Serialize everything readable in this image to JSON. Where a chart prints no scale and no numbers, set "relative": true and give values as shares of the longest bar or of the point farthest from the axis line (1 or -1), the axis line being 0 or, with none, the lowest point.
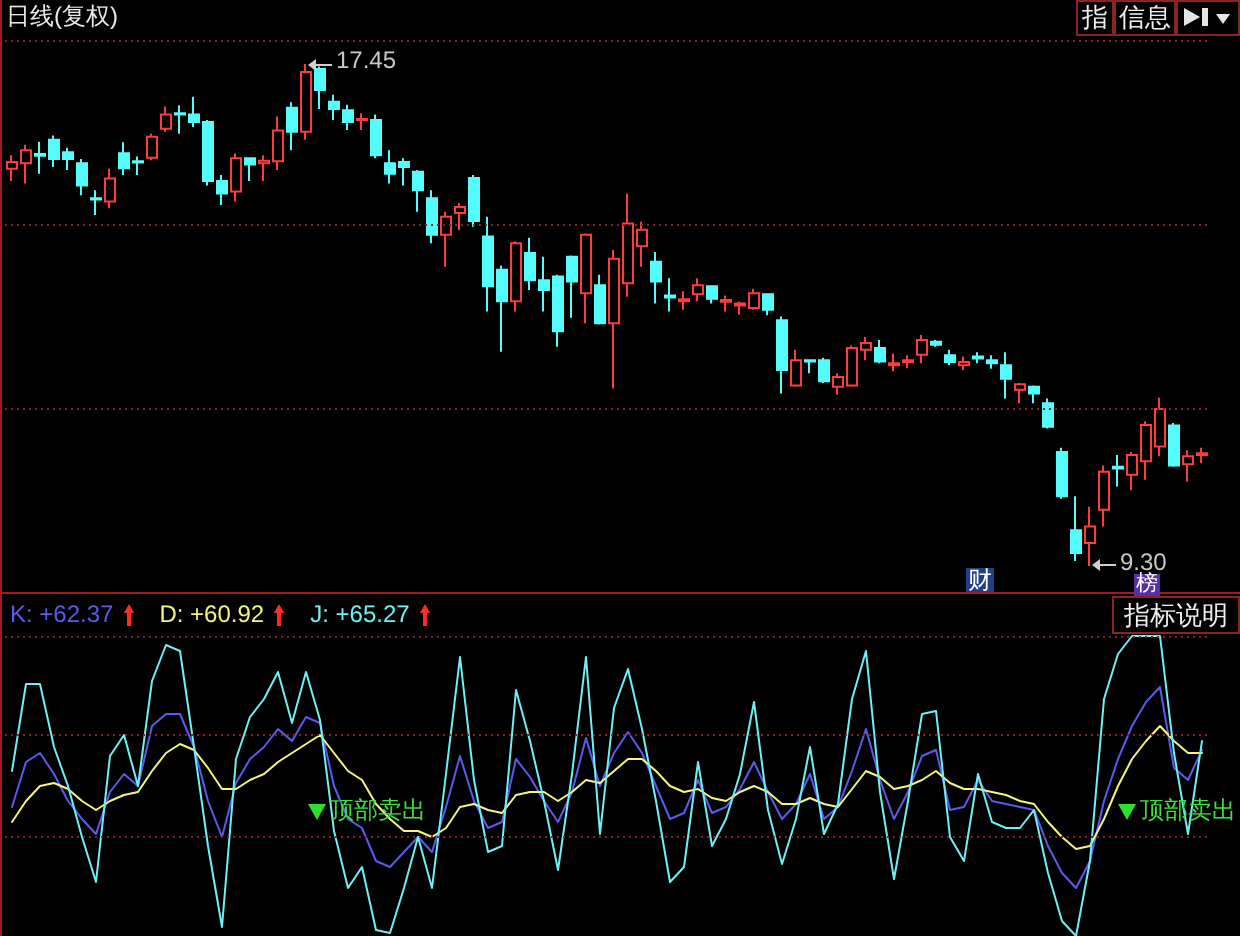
{
  "chart_data": [
    {
      "type": "candlestick",
      "title": "日线(复权)",
      "categories": [
        null,
        null,
        null,
        null,
        null,
        null,
        null,
        null,
        null,
        null,
        null,
        null,
        null,
        null,
        null,
        null,
        null,
        null,
        null,
        null,
        null,
        null,
        null,
        null,
        null,
        null,
        null,
        null,
        null,
        null,
        null,
        null,
        null,
        null,
        null,
        null,
        null,
        null,
        null,
        null,
        null,
        null,
        null,
        null,
        null,
        null,
        null,
        null,
        null,
        null,
        null,
        null,
        null,
        null,
        null,
        null,
        null,
        null,
        null,
        null,
        null,
        null,
        null,
        null,
        null,
        null,
        null,
        null,
        null,
        null,
        null,
        null,
        null,
        null,
        null,
        null,
        null,
        null,
        null,
        null,
        null,
        null,
        null,
        null,
        null,
        null
      ],
      "ohlc": [
        [
          15.75,
          15.97,
          15.55,
          15.86
        ],
        [
          15.84,
          16.14,
          15.51,
          16.05
        ],
        [
          15.99,
          16.19,
          15.67,
          15.96
        ],
        [
          16.22,
          16.29,
          15.78,
          15.91
        ],
        [
          16.02,
          16.09,
          15.73,
          15.91
        ],
        [
          15.84,
          15.91,
          15.32,
          15.48
        ],
        [
          15.27,
          15.4,
          15.0,
          15.25
        ],
        [
          15.22,
          15.75,
          15.11,
          15.59
        ],
        [
          16.0,
          16.18,
          15.65,
          15.76
        ],
        [
          15.87,
          15.95,
          15.65,
          15.85
        ],
        [
          15.93,
          16.32,
          15.89,
          16.27
        ],
        [
          16.4,
          16.76,
          16.35,
          16.63
        ],
        [
          16.65,
          16.78,
          16.32,
          16.63
        ],
        [
          16.63,
          16.92,
          16.43,
          16.51
        ],
        [
          16.51,
          16.54,
          15.48,
          15.55
        ],
        [
          15.55,
          15.65,
          15.16,
          15.35
        ],
        [
          15.38,
          16.0,
          15.22,
          15.92
        ],
        [
          15.92,
          15.92,
          15.55,
          15.82
        ],
        [
          15.84,
          15.97,
          15.55,
          15.88
        ],
        [
          15.87,
          16.6,
          15.73,
          16.37
        ],
        [
          16.74,
          16.83,
          16.05,
          16.35
        ],
        [
          16.35,
          17.45,
          16.22,
          17.32
        ],
        [
          17.37,
          17.41,
          16.72,
          17.03
        ],
        [
          16.84,
          16.95,
          16.54,
          16.72
        ],
        [
          16.7,
          16.79,
          16.38,
          16.51
        ],
        [
          16.54,
          16.65,
          16.38,
          16.56
        ],
        [
          16.54,
          16.63,
          15.92,
          15.97
        ],
        [
          15.84,
          16.05,
          15.51,
          15.67
        ],
        [
          15.86,
          15.92,
          15.48,
          15.78
        ],
        [
          15.7,
          15.73,
          15.05,
          15.4
        ],
        [
          15.27,
          15.4,
          14.54,
          14.68
        ],
        [
          14.68,
          15.05,
          14.16,
          14.97
        ],
        [
          15.03,
          15.19,
          14.75,
          15.13
        ],
        [
          15.6,
          15.65,
          14.81,
          14.9
        ],
        [
          14.65,
          14.97,
          13.43,
          13.84
        ],
        [
          14.11,
          14.18,
          12.78,
          13.6
        ],
        [
          13.6,
          14.57,
          13.43,
          14.54
        ],
        [
          14.38,
          14.63,
          13.78,
          13.94
        ],
        [
          13.94,
          14.32,
          13.43,
          13.78
        ],
        [
          14.0,
          14.03,
          12.86,
          13.11
        ],
        [
          14.32,
          14.34,
          13.33,
          13.92
        ],
        [
          13.73,
          14.7,
          13.24,
          14.68
        ],
        [
          13.86,
          14.03,
          13.22,
          13.24
        ],
        [
          13.24,
          14.43,
          12.18,
          14.29
        ],
        [
          13.89,
          15.35,
          13.67,
          14.86
        ],
        [
          14.49,
          14.89,
          14.16,
          14.76
        ],
        [
          14.24,
          14.4,
          13.56,
          13.92
        ],
        [
          13.69,
          13.97,
          13.43,
          13.66
        ],
        [
          13.6,
          13.76,
          13.46,
          13.63
        ],
        [
          13.71,
          13.97,
          13.6,
          13.86
        ],
        [
          13.84,
          13.86,
          13.56,
          13.64
        ],
        [
          13.59,
          13.69,
          13.43,
          13.62
        ],
        [
          13.53,
          13.59,
          13.38,
          13.56
        ],
        [
          13.49,
          13.8,
          13.46,
          13.73
        ],
        [
          13.71,
          13.73,
          13.37,
          13.46
        ],
        [
          13.29,
          13.35,
          12.1,
          12.48
        ],
        [
          12.23,
          12.81,
          12.21,
          12.64
        ],
        [
          12.64,
          12.64,
          12.43,
          12.62
        ],
        [
          12.64,
          12.68,
          12.27,
          12.3
        ],
        [
          12.21,
          12.43,
          12.08,
          12.37
        ],
        [
          12.23,
          12.88,
          12.21,
          12.84
        ],
        [
          12.81,
          13.02,
          12.64,
          12.92
        ],
        [
          12.84,
          12.97,
          12.59,
          12.62
        ],
        [
          12.56,
          12.75,
          12.46,
          12.59
        ],
        [
          12.61,
          12.72,
          12.51,
          12.64
        ],
        [
          12.73,
          13.05,
          12.59,
          12.97
        ],
        [
          12.94,
          12.97,
          12.86,
          12.89
        ],
        [
          12.72,
          12.81,
          12.56,
          12.61
        ],
        [
          12.56,
          12.7,
          12.48,
          12.61
        ],
        [
          12.7,
          12.77,
          12.59,
          12.67
        ],
        [
          12.64,
          12.72,
          12.5,
          12.59
        ],
        [
          12.56,
          12.77,
          12.02,
          12.34
        ],
        [
          12.16,
          12.27,
          11.94,
          12.25
        ],
        [
          12.21,
          12.23,
          11.94,
          12.1
        ],
        [
          11.94,
          12.02,
          11.53,
          11.56
        ],
        [
          11.15,
          11.22,
          10.39,
          10.43
        ],
        [
          9.88,
          10.43,
          9.38,
          9.51
        ],
        [
          9.67,
          10.26,
          9.3,
          9.94
        ],
        [
          10.21,
          10.93,
          9.94,
          10.83
        ],
        [
          10.91,
          11.1,
          10.59,
          10.88
        ],
        [
          10.78,
          11.15,
          10.53,
          11.1
        ],
        [
          11.0,
          11.65,
          10.7,
          11.59
        ],
        [
          11.24,
          12.03,
          11.08,
          11.85
        ],
        [
          11.58,
          11.62,
          10.91,
          10.93
        ],
        [
          10.95,
          11.18,
          10.67,
          11.08
        ],
        [
          11.1,
          11.22,
          10.97,
          11.13
        ]
      ],
      "colors": [
        "#ff3c3c",
        "#ff3c3c",
        "#54fcfc",
        "#54fcfc",
        "#54fcfc",
        "#54fcfc",
        "#54fcfc",
        "#ff3c3c",
        "#54fcfc",
        "#54fcfc",
        "#ff3c3c",
        "#ff3c3c",
        "#54fcfc",
        "#54fcfc",
        "#54fcfc",
        "#54fcfc",
        "#ff3c3c",
        "#54fcfc",
        "#ff3c3c",
        "#ff3c3c",
        "#54fcfc",
        "#ff3c3c",
        "#54fcfc",
        "#54fcfc",
        "#54fcfc",
        "#ff3c3c",
        "#54fcfc",
        "#54fcfc",
        "#54fcfc",
        "#54fcfc",
        "#54fcfc",
        "#ff3c3c",
        "#ff3c3c",
        "#54fcfc",
        "#54fcfc",
        "#54fcfc",
        "#ff3c3c",
        "#54fcfc",
        "#54fcfc",
        "#54fcfc",
        "#54fcfc",
        "#ff3c3c",
        "#54fcfc",
        "#ff3c3c",
        "#ff3c3c",
        "#ff3c3c",
        "#54fcfc",
        "#54fcfc",
        "#ff3c3c",
        "#ff3c3c",
        "#54fcfc",
        "#ff3c3c",
        "#ff3c3c",
        "#ff3c3c",
        "#54fcfc",
        "#54fcfc",
        "#ff3c3c",
        "#54fcfc",
        "#54fcfc",
        "#ff3c3c",
        "#ff3c3c",
        "#ff3c3c",
        "#54fcfc",
        "#ff3c3c",
        "#ff3c3c",
        "#ff3c3c",
        "#54fcfc",
        "#54fcfc",
        "#ff3c3c",
        "#54fcfc",
        "#54fcfc",
        "#54fcfc",
        "#ff3c3c",
        "#54fcfc",
        "#54fcfc",
        "#54fcfc",
        "#54fcfc",
        "#ff3c3c",
        "#ff3c3c",
        "#54fcfc",
        "#ff3c3c",
        "#ff3c3c",
        "#ff3c3c",
        "#54fcfc",
        "#ff3c3c",
        "#ff3c3c"
      ],
      "ref_lines": [
        {
          "axis": "y",
          "value": 11.86,
          "color": "#7d2424",
          "line_style": "dotted"
        },
        {
          "axis": "y",
          "value": 14.85,
          "color": "#7d2424",
          "line_style": "dotted"
        },
        {
          "axis": "y",
          "value": 17.84,
          "color": "#7d2424",
          "line_style": "dotted"
        }
      ],
      "annotations": [
        "17.45",
        "9.30",
        "财",
        "榜",
        "指",
        "信息"
      ]
    },
    {
      "type": "line",
      "relative": true,
      "legend": "top left",
      "marker": "none",
      "categories": [
        null,
        null,
        null,
        null,
        null,
        null,
        null,
        null,
        null,
        null,
        null,
        null,
        null,
        null,
        null,
        null,
        null,
        null,
        null,
        null,
        null,
        null,
        null,
        null,
        null,
        null,
        null,
        null,
        null,
        null,
        null,
        null,
        null,
        null,
        null,
        null,
        null,
        null,
        null,
        null,
        null,
        null,
        null,
        null,
        null,
        null,
        null,
        null,
        null,
        null,
        null,
        null,
        null,
        null,
        null,
        null,
        null,
        null,
        null,
        null,
        null,
        null,
        null,
        null,
        null,
        null,
        null,
        null,
        null,
        null,
        null,
        null,
        null,
        null,
        null,
        null,
        null,
        null,
        null,
        null,
        null,
        null,
        null,
        null,
        null,
        null
      ],
      "series": [
        {
          "name": "K: +62.37",
          "color": "#5a5af0",
          "values": [
            0.43,
            0.58,
            0.61,
            0.54,
            0.45,
            0.39,
            0.34,
            0.48,
            0.54,
            0.5,
            0.7,
            0.74,
            0.74,
            0.63,
            0.45,
            0.33,
            0.51,
            0.59,
            0.63,
            0.69,
            0.65,
            0.73,
            0.71,
            0.5,
            0.39,
            0.36,
            0.25,
            0.23,
            0.28,
            0.33,
            0.28,
            0.43,
            0.6,
            0.45,
            0.36,
            0.38,
            0.59,
            0.53,
            0.45,
            0.38,
            0.48,
            0.66,
            0.5,
            0.61,
            0.68,
            0.61,
            0.5,
            0.39,
            0.41,
            0.52,
            0.41,
            0.43,
            0.49,
            0.58,
            0.48,
            0.39,
            0.44,
            0.54,
            0.39,
            0.43,
            0.55,
            0.69,
            0.52,
            0.39,
            0.48,
            0.6,
            0.62,
            0.42,
            0.43,
            0.52,
            0.45,
            0.44,
            0.43,
            0.42,
            0.3,
            0.21,
            0.16,
            0.25,
            0.45,
            0.59,
            0.7,
            0.78,
            0.83,
            0.56,
            0.52,
            0.62
          ]
        },
        {
          "name": "D: +60.92",
          "color": "#f5f57a",
          "values": [
            0.38,
            0.45,
            0.5,
            0.51,
            0.49,
            0.45,
            0.42,
            0.45,
            0.47,
            0.48,
            0.55,
            0.61,
            0.64,
            0.62,
            0.56,
            0.49,
            0.49,
            0.52,
            0.54,
            0.58,
            0.61,
            0.64,
            0.67,
            0.61,
            0.55,
            0.52,
            0.44,
            0.39,
            0.35,
            0.35,
            0.33,
            0.36,
            0.43,
            0.44,
            0.42,
            0.41,
            0.47,
            0.48,
            0.48,
            0.45,
            0.48,
            0.52,
            0.51,
            0.55,
            0.59,
            0.59,
            0.55,
            0.5,
            0.48,
            0.49,
            0.46,
            0.45,
            0.48,
            0.5,
            0.48,
            0.44,
            0.44,
            0.46,
            0.44,
            0.43,
            0.49,
            0.55,
            0.53,
            0.49,
            0.5,
            0.52,
            0.55,
            0.51,
            0.49,
            0.49,
            0.48,
            0.47,
            0.45,
            0.44,
            0.38,
            0.33,
            0.29,
            0.3,
            0.39,
            0.5,
            0.59,
            0.65,
            0.7,
            0.65,
            0.61,
            0.61
          ]
        },
        {
          "name": "J: +65.27",
          "color": "#6ff0f5",
          "values": [
            0.55,
            0.84,
            0.84,
            0.63,
            0.5,
            0.33,
            0.18,
            0.6,
            0.67,
            0.5,
            0.85,
            0.97,
            0.95,
            0.63,
            0.3,
            0.03,
            0.59,
            0.73,
            0.79,
            0.88,
            0.71,
            0.88,
            0.72,
            0.35,
            0.16,
            0.23,
            0.02,
            0.01,
            0.16,
            0.33,
            0.16,
            0.54,
            0.93,
            0.52,
            0.28,
            0.3,
            0.82,
            0.65,
            0.45,
            0.22,
            0.54,
            0.93,
            0.34,
            0.76,
            0.89,
            0.69,
            0.45,
            0.18,
            0.23,
            0.58,
            0.3,
            0.39,
            0.54,
            0.78,
            0.42,
            0.24,
            0.39,
            0.63,
            0.34,
            0.44,
            0.79,
            0.95,
            0.48,
            0.19,
            0.45,
            0.74,
            0.75,
            0.33,
            0.25,
            0.54,
            0.38,
            0.36,
            0.36,
            0.42,
            0.21,
            0.05,
            0,
            0.25,
            0.79,
            0.94,
            1,
            1,
            1,
            0.61,
            0.34,
            0.65
          ]
        }
      ],
      "ref_lines": [
        {
          "axis": "y",
          "value": 0.33,
          "color": "#7d2424",
          "line_style": "dotted"
        },
        {
          "axis": "y",
          "value": 0.67,
          "color": "#7d2424",
          "line_style": "dotted"
        },
        {
          "axis": "y",
          "value": 1,
          "color": "#7d2424",
          "line_style": "dotted"
        }
      ],
      "annotations": [
        "顶部卖出",
        "顶部卖出",
        "指标说明"
      ]
    }
  ]
}
